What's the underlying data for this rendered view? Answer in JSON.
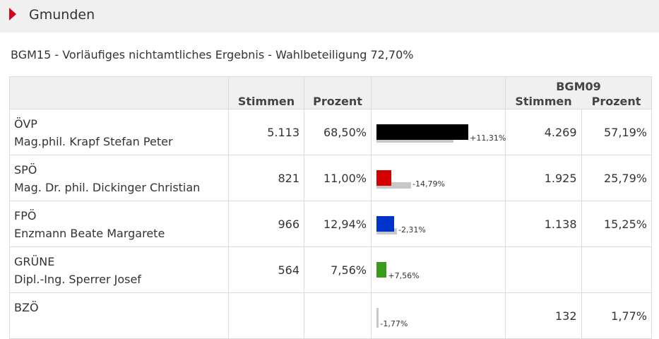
{
  "header": {
    "title": "Gmunden"
  },
  "subtitle": "BGM15 - Vorläufiges nichtamtliches Ergebnis - Wahlbeteiligung 72,70%",
  "table": {
    "col_stimmen": "Stimmen",
    "col_prozent": "Prozent",
    "prev_label": "BGM09",
    "prev_stimmen": "Stimmen",
    "prev_prozent": "Prozent"
  },
  "rows": [
    {
      "party": "ÖVP",
      "candidate": "Mag.phil. Krapf Stefan Peter",
      "stimmen": "5.113",
      "prozent": "68,50%",
      "diff": "+11,31%",
      "prev_stimmen": "4.269",
      "prev_prozent": "57,19%",
      "color": "#000000",
      "pct": 68.5,
      "prev_pct": 57.19
    },
    {
      "party": "SPÖ",
      "candidate": "Mag. Dr. phil. Dickinger Christian",
      "stimmen": "821",
      "prozent": "11,00%",
      "diff": "-14,79%",
      "prev_stimmen": "1.925",
      "prev_prozent": "25,79%",
      "color": "#d40000",
      "pct": 11.0,
      "prev_pct": 25.79
    },
    {
      "party": "FPÖ",
      "candidate": "Enzmann Beate Margarete",
      "stimmen": "966",
      "prozent": "12,94%",
      "diff": "-2,31%",
      "prev_stimmen": "1.138",
      "prev_prozent": "15,25%",
      "color": "#0033cc",
      "pct": 12.94,
      "prev_pct": 15.25
    },
    {
      "party": "GRÜNE",
      "candidate": "Dipl.-Ing. Sperrer Josef",
      "stimmen": "564",
      "prozent": "7,56%",
      "diff": "+7,56%",
      "prev_stimmen": "",
      "prev_prozent": "",
      "color": "#3a9b1a",
      "pct": 7.56,
      "prev_pct": 0
    },
    {
      "party": "BZÖ",
      "candidate": "",
      "stimmen": "",
      "prozent": "",
      "diff": "-1,77%",
      "prev_stimmen": "132",
      "prev_prozent": "1,77%",
      "color": "#888888",
      "pct": 0,
      "prev_pct": 1.77
    }
  ]
}
